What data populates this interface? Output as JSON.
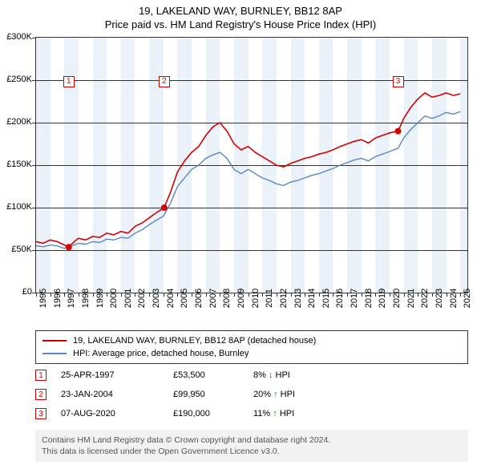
{
  "title": "19, LAKELAND WAY, BURNLEY, BB12 8AP",
  "subtitle": "Price paid vs. HM Land Registry's House Price Index (HPI)",
  "chart": {
    "type": "line",
    "background_color": "#ffffff",
    "plot_border_color": "#333333",
    "shade_color": "#eaf1f8",
    "x_min": 1995,
    "x_max": 2025.5,
    "y_min": 0,
    "y_max": 300000,
    "y_ticks": [
      0,
      50000,
      100000,
      150000,
      200000,
      250000,
      300000
    ],
    "y_tick_labels": [
      "£0",
      "£50K",
      "£100K",
      "£150K",
      "£200K",
      "£250K",
      "£300K"
    ],
    "x_ticks": [
      1995,
      1996,
      1997,
      1998,
      1999,
      2000,
      2001,
      2002,
      2003,
      2004,
      2005,
      2006,
      2007,
      2008,
      2009,
      2010,
      2011,
      2012,
      2013,
      2014,
      2015,
      2016,
      2017,
      2018,
      2019,
      2020,
      2021,
      2022,
      2023,
      2024,
      2025
    ],
    "shade_bands_x": [
      1995,
      1997,
      1999,
      2001,
      2003,
      2005,
      2007,
      2009,
      2011,
      2013,
      2015,
      2017,
      2019,
      2021,
      2023,
      2025
    ],
    "series": [
      {
        "name": "price_paid",
        "color": "#d40000",
        "width": 1.6,
        "points": [
          [
            1995,
            60000
          ],
          [
            1995.5,
            58000
          ],
          [
            1996,
            62000
          ],
          [
            1996.5,
            60000
          ],
          [
            1997,
            56000
          ],
          [
            1997.3,
            53500
          ],
          [
            1997.7,
            60000
          ],
          [
            1998,
            64000
          ],
          [
            1998.5,
            62000
          ],
          [
            1999,
            66000
          ],
          [
            1999.5,
            65000
          ],
          [
            2000,
            70000
          ],
          [
            2000.5,
            68000
          ],
          [
            2001,
            72000
          ],
          [
            2001.5,
            70000
          ],
          [
            2002,
            78000
          ],
          [
            2002.5,
            82000
          ],
          [
            2003,
            88000
          ],
          [
            2003.5,
            94000
          ],
          [
            2004.06,
            99950
          ],
          [
            2004.5,
            118000
          ],
          [
            2005,
            142000
          ],
          [
            2005.5,
            155000
          ],
          [
            2006,
            165000
          ],
          [
            2006.5,
            172000
          ],
          [
            2007,
            185000
          ],
          [
            2007.5,
            195000
          ],
          [
            2008,
            200000
          ],
          [
            2008.5,
            190000
          ],
          [
            2009,
            175000
          ],
          [
            2009.5,
            168000
          ],
          [
            2010,
            172000
          ],
          [
            2010.5,
            165000
          ],
          [
            2011,
            160000
          ],
          [
            2011.5,
            155000
          ],
          [
            2012,
            150000
          ],
          [
            2012.5,
            148000
          ],
          [
            2013,
            152000
          ],
          [
            2013.5,
            155000
          ],
          [
            2014,
            158000
          ],
          [
            2014.5,
            160000
          ],
          [
            2015,
            163000
          ],
          [
            2015.5,
            165000
          ],
          [
            2016,
            168000
          ],
          [
            2016.5,
            172000
          ],
          [
            2017,
            175000
          ],
          [
            2017.5,
            178000
          ],
          [
            2018,
            180000
          ],
          [
            2018.5,
            176000
          ],
          [
            2019,
            182000
          ],
          [
            2019.5,
            185000
          ],
          [
            2020,
            188000
          ],
          [
            2020.6,
            190000
          ],
          [
            2021,
            205000
          ],
          [
            2021.5,
            218000
          ],
          [
            2022,
            228000
          ],
          [
            2022.5,
            235000
          ],
          [
            2023,
            230000
          ],
          [
            2023.5,
            232000
          ],
          [
            2024,
            235000
          ],
          [
            2024.5,
            232000
          ],
          [
            2025,
            234000
          ]
        ]
      },
      {
        "name": "hpi",
        "color": "#5b86c4",
        "width": 1.4,
        "points": [
          [
            1995,
            55000
          ],
          [
            1995.5,
            54000
          ],
          [
            1996,
            56000
          ],
          [
            1996.5,
            55000
          ],
          [
            1997,
            52000
          ],
          [
            1997.5,
            55000
          ],
          [
            1998,
            58000
          ],
          [
            1998.5,
            57000
          ],
          [
            1999,
            60000
          ],
          [
            1999.5,
            59000
          ],
          [
            2000,
            63000
          ],
          [
            2000.5,
            62000
          ],
          [
            2001,
            65000
          ],
          [
            2001.5,
            64000
          ],
          [
            2002,
            70000
          ],
          [
            2002.5,
            74000
          ],
          [
            2003,
            80000
          ],
          [
            2003.5,
            85000
          ],
          [
            2004,
            90000
          ],
          [
            2004.5,
            105000
          ],
          [
            2005,
            125000
          ],
          [
            2005.5,
            135000
          ],
          [
            2006,
            145000
          ],
          [
            2006.5,
            150000
          ],
          [
            2007,
            158000
          ],
          [
            2007.5,
            162000
          ],
          [
            2008,
            165000
          ],
          [
            2008.5,
            158000
          ],
          [
            2009,
            145000
          ],
          [
            2009.5,
            140000
          ],
          [
            2010,
            145000
          ],
          [
            2010.5,
            140000
          ],
          [
            2011,
            135000
          ],
          [
            2011.5,
            132000
          ],
          [
            2012,
            128000
          ],
          [
            2012.5,
            126000
          ],
          [
            2013,
            130000
          ],
          [
            2013.5,
            132000
          ],
          [
            2014,
            135000
          ],
          [
            2014.5,
            138000
          ],
          [
            2015,
            140000
          ],
          [
            2015.5,
            143000
          ],
          [
            2016,
            146000
          ],
          [
            2016.5,
            150000
          ],
          [
            2017,
            153000
          ],
          [
            2017.5,
            156000
          ],
          [
            2018,
            158000
          ],
          [
            2018.5,
            155000
          ],
          [
            2019,
            160000
          ],
          [
            2019.5,
            163000
          ],
          [
            2020,
            166000
          ],
          [
            2020.6,
            170000
          ],
          [
            2021,
            182000
          ],
          [
            2021.5,
            192000
          ],
          [
            2022,
            200000
          ],
          [
            2022.5,
            208000
          ],
          [
            2023,
            205000
          ],
          [
            2023.5,
            208000
          ],
          [
            2024,
            212000
          ],
          [
            2024.5,
            210000
          ],
          [
            2025,
            213000
          ]
        ]
      }
    ],
    "markers": [
      {
        "n": "1",
        "x": 1997.31,
        "y": 53500,
        "box_y": 255000,
        "color": "#d40000"
      },
      {
        "n": "2",
        "x": 2004.06,
        "y": 99950,
        "box_y": 255000,
        "color": "#d40000"
      },
      {
        "n": "3",
        "x": 2020.6,
        "y": 190000,
        "box_y": 255000,
        "color": "#d40000"
      }
    ]
  },
  "legend": {
    "items": [
      {
        "label": "19, LAKELAND WAY, BURNLEY, BB12 8AP (detached house)",
        "color": "#d40000"
      },
      {
        "label": "HPI: Average price, detached house, Burnley",
        "color": "#5b86c4"
      }
    ]
  },
  "events": [
    {
      "n": "1",
      "date": "25-APR-1997",
      "price": "£53,500",
      "delta": "8%",
      "arrow": "↓",
      "arrow_color": "#d40000",
      "suffix": "HPI"
    },
    {
      "n": "2",
      "date": "23-JAN-2004",
      "price": "£99,950",
      "delta": "20%",
      "arrow": "↑",
      "arrow_color": "#1a9e1a",
      "suffix": "HPI"
    },
    {
      "n": "3",
      "date": "07-AUG-2020",
      "price": "£190,000",
      "delta": "11%",
      "arrow": "↑",
      "arrow_color": "#1a9e1a",
      "suffix": "HPI"
    }
  ],
  "footnote": {
    "line1": "Contains HM Land Registry data © Crown copyright and database right 2024.",
    "line2": "This data is licensed under the Open Government Licence v3.0."
  },
  "event_marker_color": "#d40000"
}
